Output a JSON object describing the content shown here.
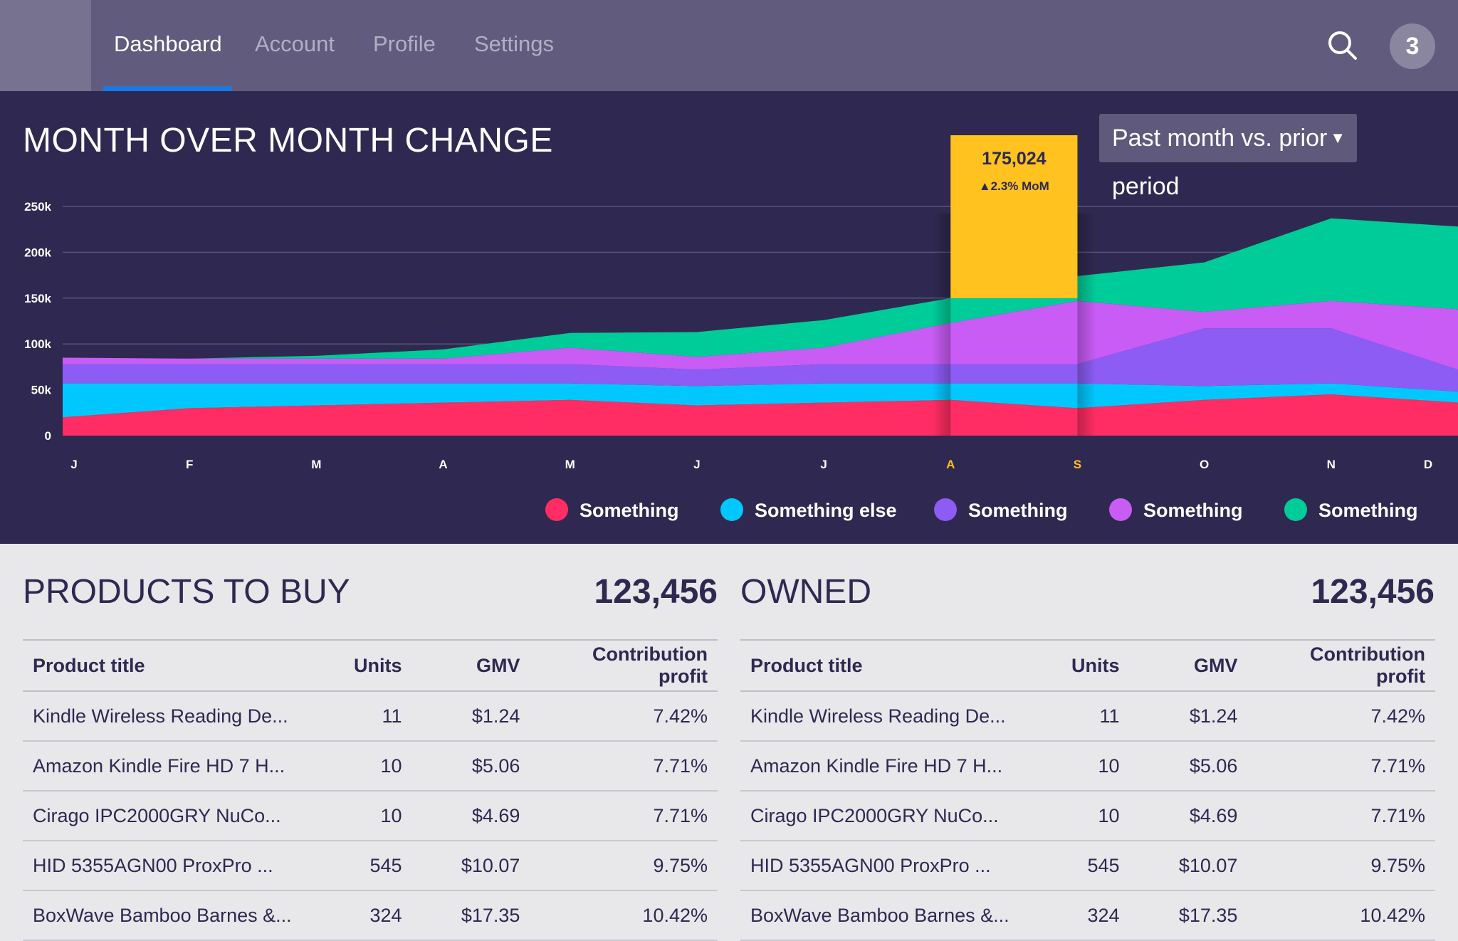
{
  "nav": {
    "tabs": [
      {
        "label": "Dashboard",
        "active": true
      },
      {
        "label": "Account",
        "active": false
      },
      {
        "label": "Profile",
        "active": false
      },
      {
        "label": "Settings",
        "active": false
      }
    ],
    "notification_count": "3"
  },
  "chart_panel": {
    "title": "MONTH OVER MONTH CHANGE",
    "period_select": "Past month vs. prior period"
  },
  "chart_data": {
    "type": "area",
    "stacked": true,
    "categories": [
      "J",
      "F",
      "M",
      "A",
      "M",
      "J",
      "J",
      "A",
      "S",
      "O",
      "N",
      "D"
    ],
    "highlighted_categories": [
      "A",
      "S"
    ],
    "ylim": [
      0,
      250000
    ],
    "ytick_labels": [
      "0",
      "50k",
      "100k",
      "150k",
      "200k",
      "250k"
    ],
    "ytick_values": [
      0,
      50000,
      100000,
      150000,
      200000,
      250000
    ],
    "grid": true,
    "series": [
      {
        "name": "Something",
        "color": "#ff2d63",
        "values": [
          20000,
          30000,
          33000,
          36000,
          39000,
          33000,
          36000,
          39000,
          30000,
          39000,
          45000,
          36000
        ]
      },
      {
        "name": "Something else",
        "color": "#00c8ff",
        "values": [
          37000,
          27000,
          24000,
          21000,
          18000,
          21000,
          21000,
          18000,
          27000,
          15000,
          12000,
          12000
        ]
      },
      {
        "name": "Something",
        "color": "#8c5cf5",
        "values": [
          21000,
          21000,
          21000,
          21000,
          21000,
          18000,
          21000,
          21000,
          21000,
          63000,
          60000,
          24000
        ]
      },
      {
        "name": "Something",
        "color": "#c85cf5",
        "values": [
          7000,
          6000,
          6000,
          6000,
          18000,
          14000,
          18000,
          45000,
          69000,
          18000,
          30000,
          66000
        ]
      },
      {
        "name": "Something",
        "color": "#00cc99",
        "values": [
          0,
          0,
          3000,
          10000,
          16000,
          27000,
          30000,
          27000,
          27000,
          54000,
          90000,
          90000
        ]
      }
    ],
    "tooltip": {
      "category": "A",
      "value": "175,024",
      "change": "▲2.3% MoM",
      "color": "#ffc21f"
    }
  },
  "products_to_buy": {
    "title": "PRODUCTS TO BUY",
    "total": "123,456",
    "columns": [
      "Product title",
      "Units",
      "GMV",
      "Contribution profit"
    ],
    "rows": [
      [
        "Kindle Wireless Reading De...",
        "11",
        "$1.24",
        "7.42%"
      ],
      [
        "Amazon Kindle Fire HD 7 H...",
        "10",
        "$5.06",
        "7.71%"
      ],
      [
        "Cirago IPC2000GRY NuCo...",
        "10",
        "$4.69",
        "7.71%"
      ],
      [
        "HID 5355AGN00 ProxPro ...",
        "545",
        "$10.07",
        "9.75%"
      ],
      [
        "BoxWave Bamboo Barnes &...",
        "324",
        "$17.35",
        "10.42%"
      ]
    ]
  },
  "owned": {
    "title": "OWNED",
    "total": "123,456",
    "columns": [
      "Product title",
      "Units",
      "GMV",
      "Contribution profit"
    ],
    "rows": [
      [
        "Kindle Wireless Reading De...",
        "11",
        "$1.24",
        "7.42%"
      ],
      [
        "Amazon Kindle Fire HD 7 H...",
        "10",
        "$5.06",
        "7.71%"
      ],
      [
        "Cirago IPC2000GRY NuCo...",
        "10",
        "$4.69",
        "7.71%"
      ],
      [
        "HID 5355AGN00 ProxPro ...",
        "545",
        "$10.07",
        "9.75%"
      ],
      [
        "BoxWave Bamboo Barnes &...",
        "324",
        "$17.35",
        "10.42%"
      ]
    ]
  }
}
